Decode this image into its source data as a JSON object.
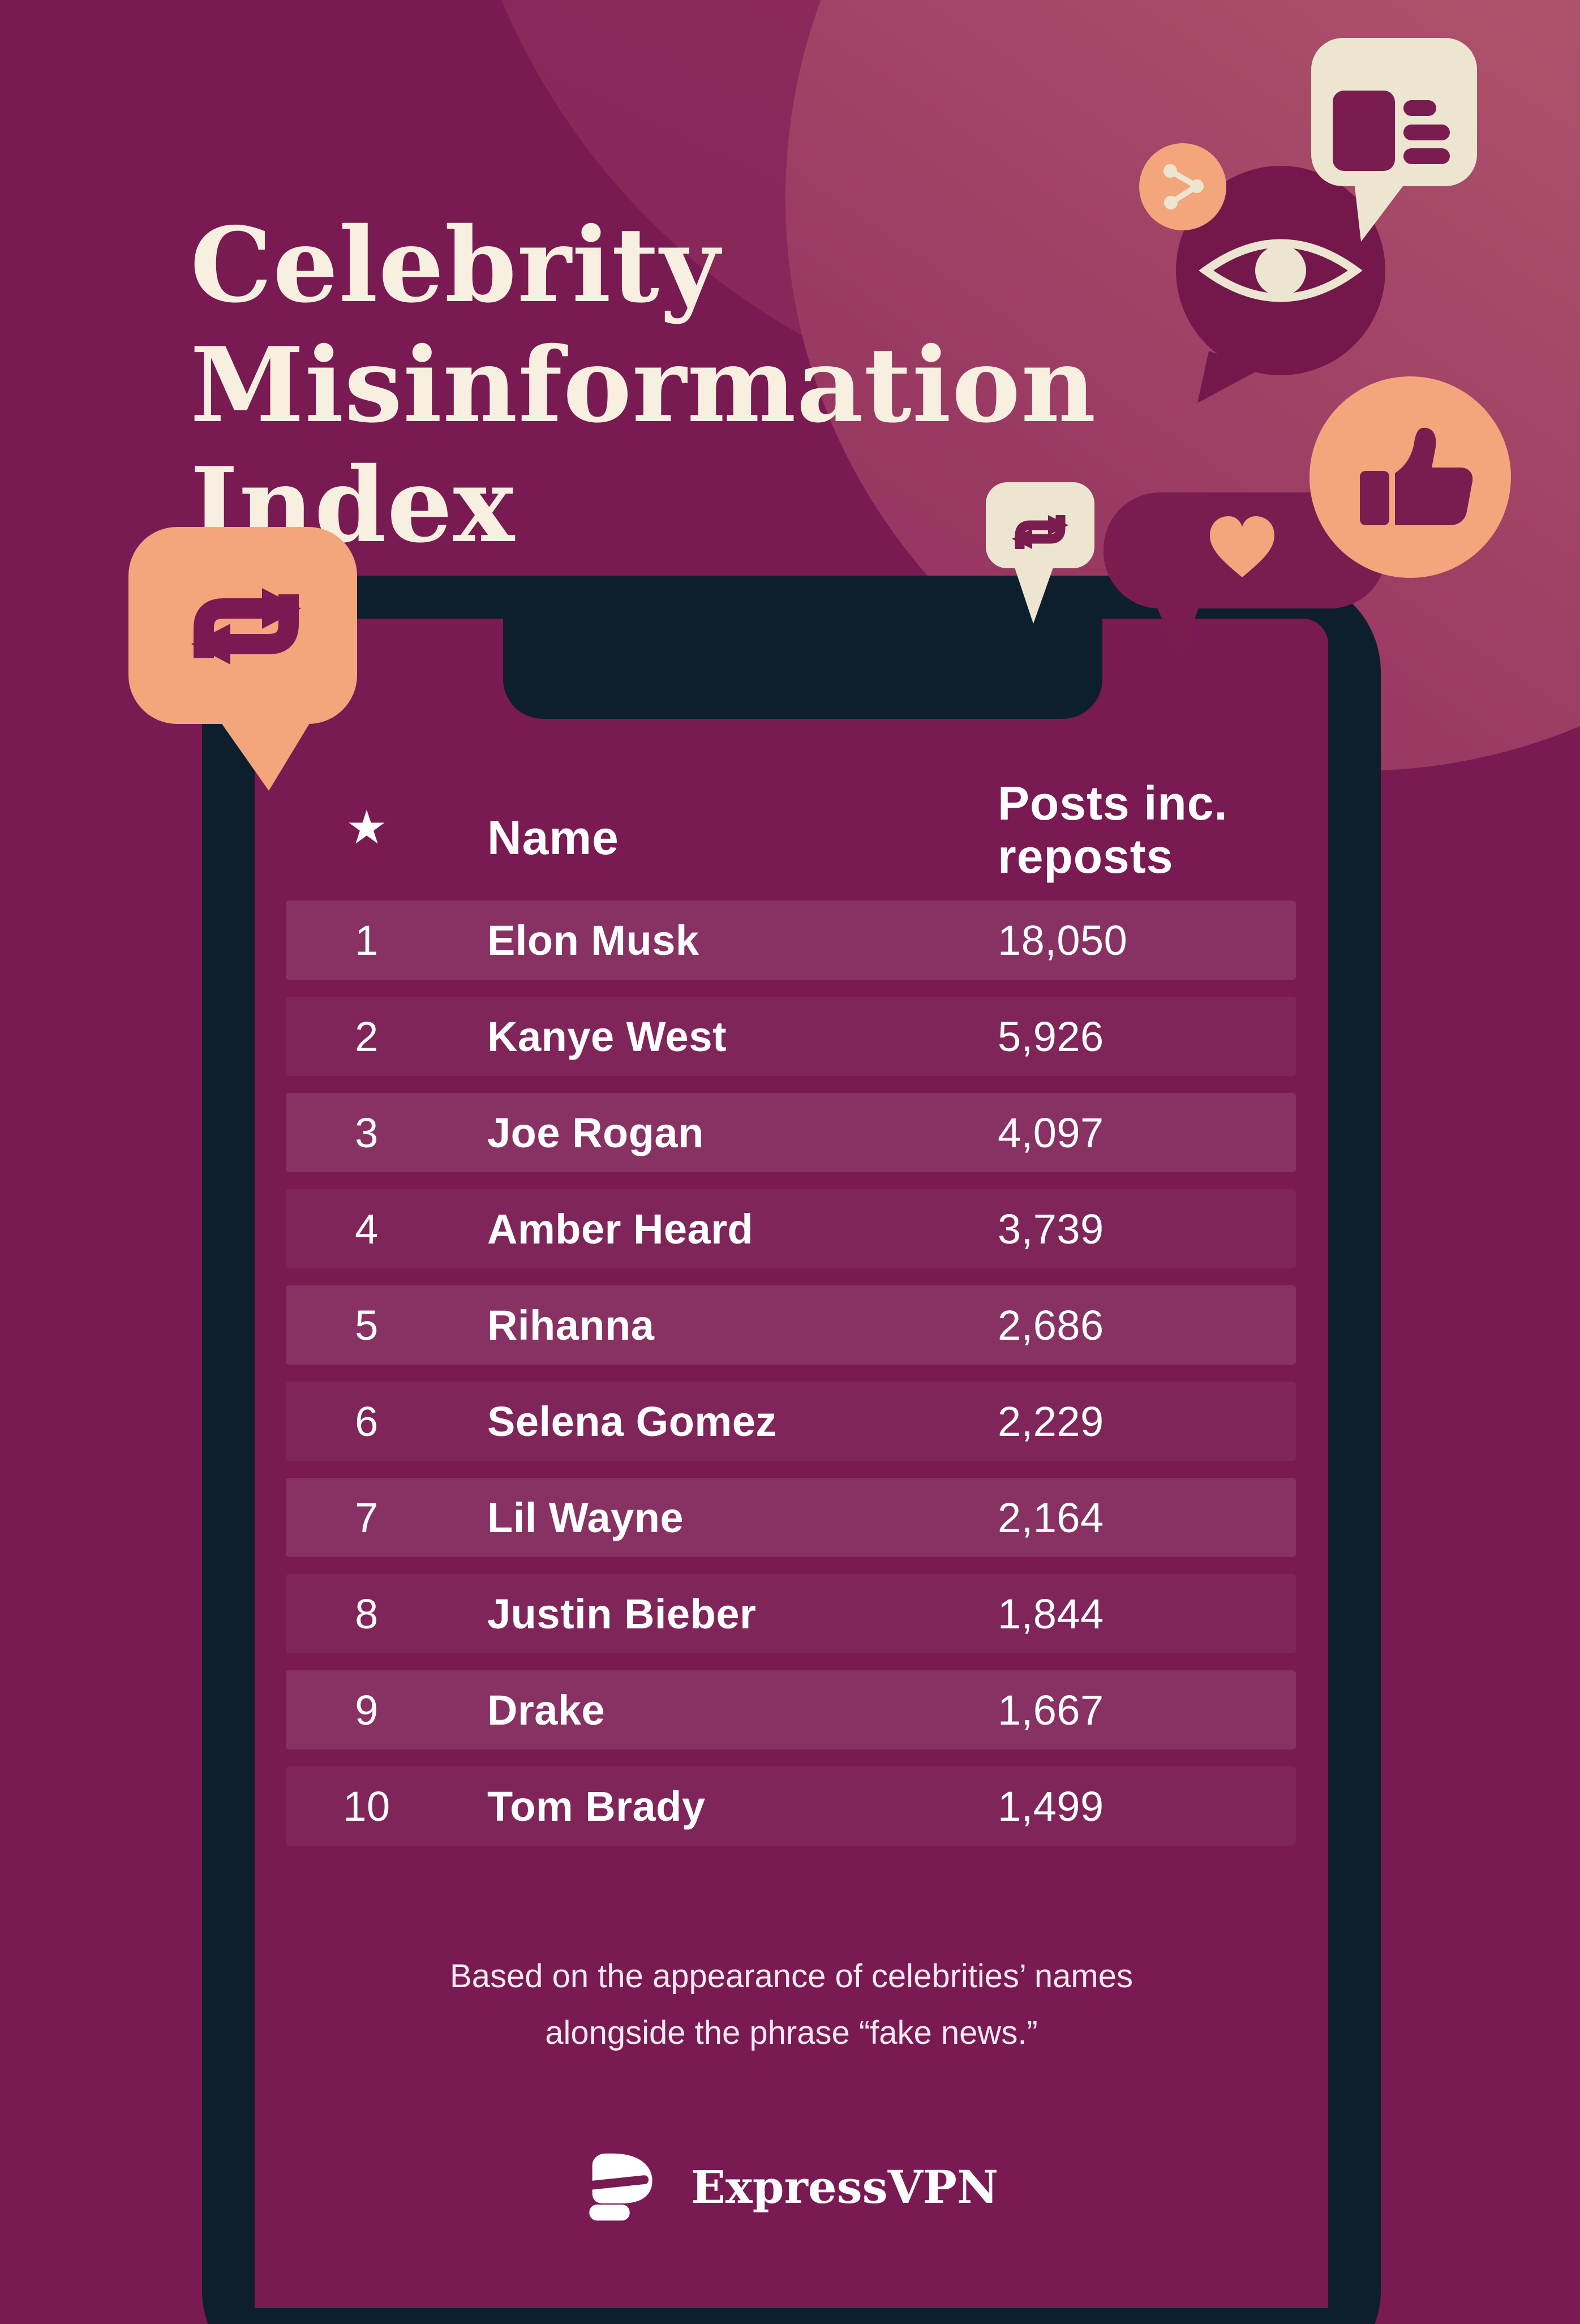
{
  "title": "Celebrity Misinformation Index",
  "table": {
    "star_icon": "★",
    "col_name": "Name",
    "col_posts": "Posts inc. reposts",
    "rows": [
      {
        "rank": "1",
        "name": "Elon Musk",
        "posts": "18,050"
      },
      {
        "rank": "2",
        "name": "Kanye West",
        "posts": "5,926"
      },
      {
        "rank": "3",
        "name": "Joe Rogan",
        "posts": "4,097"
      },
      {
        "rank": "4",
        "name": "Amber Heard",
        "posts": "3,739"
      },
      {
        "rank": "5",
        "name": "Rihanna",
        "posts": "2,686"
      },
      {
        "rank": "6",
        "name": "Selena Gomez",
        "posts": "2,229"
      },
      {
        "rank": "7",
        "name": "Lil Wayne",
        "posts": "2,164"
      },
      {
        "rank": "8",
        "name": "Justin Bieber",
        "posts": "1,844"
      },
      {
        "rank": "9",
        "name": "Drake",
        "posts": "1,667"
      },
      {
        "rank": "10",
        "name": "Tom Brady",
        "posts": "1,499"
      }
    ]
  },
  "footnote": {
    "line1": "Based on the appearance of celebrities’ names",
    "line2": "alongside the phrase “fake news.”"
  },
  "brand": {
    "name": "ExpressVPN"
  },
  "icons": [
    "repost-icon",
    "news-icon",
    "share-icon",
    "eye-icon",
    "thumbs-up-icon",
    "heart-icon",
    "star-icon",
    "expressvpn-logo-icon"
  ],
  "colors": {
    "background": "#7a1a52",
    "phone_frame_navy": "#0d1f2d",
    "cream": "#ece6d1",
    "orange": "#f3a67c",
    "accent_magenta": "#7b1c50",
    "row_text": "#ffffff",
    "title_cream": "#f7f0e1",
    "corner_rose": "#bd6572"
  },
  "chart_data": {
    "type": "table",
    "title": "Celebrity Misinformation Index",
    "columns": [
      "Rank",
      "Name",
      "Posts inc. reposts"
    ],
    "rows": [
      [
        1,
        "Elon Musk",
        18050
      ],
      [
        2,
        "Kanye West",
        5926
      ],
      [
        3,
        "Joe Rogan",
        4097
      ],
      [
        4,
        "Amber Heard",
        3739
      ],
      [
        5,
        "Rihanna",
        2686
      ],
      [
        6,
        "Selena Gomez",
        2229
      ],
      [
        7,
        "Lil Wayne",
        2164
      ],
      [
        8,
        "Justin Bieber",
        1844
      ],
      [
        9,
        "Drake",
        1667
      ],
      [
        10,
        "Tom Brady",
        1499
      ]
    ],
    "note": "Based on the appearance of celebrities’ names alongside the phrase “fake news.”"
  }
}
